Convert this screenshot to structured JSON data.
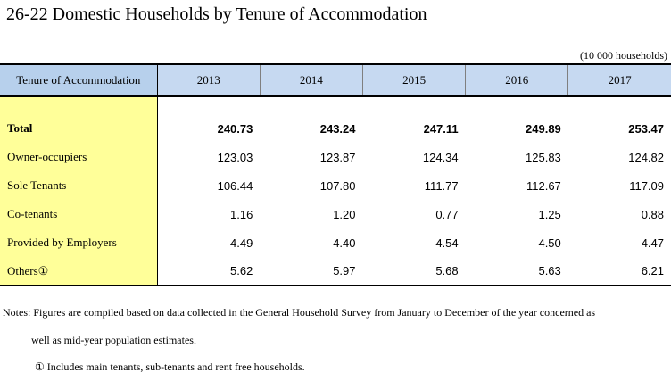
{
  "title": "26-22  Domestic Households by Tenure of Accommodation",
  "unit": "(10 000 households)",
  "table": {
    "header_label": "Tenure of Accommodation",
    "years": [
      "2013",
      "2014",
      "2015",
      "2016",
      "2017"
    ],
    "rows": [
      {
        "label": "Total",
        "values": [
          "240.73",
          "243.24",
          "247.11",
          "249.89",
          "253.47"
        ]
      },
      {
        "label": "Owner-occupiers",
        "values": [
          "123.03",
          "123.87",
          "124.34",
          "125.83",
          "124.82"
        ]
      },
      {
        "label": "Sole Tenants",
        "values": [
          "106.44",
          "107.80",
          "111.77",
          "112.67",
          "117.09"
        ]
      },
      {
        "label": "Co-tenants",
        "values": [
          "1.16",
          "1.20",
          "0.77",
          "1.25",
          "0.88"
        ]
      },
      {
        "label": "Provided by Employers",
        "values": [
          "4.49",
          "4.40",
          "4.54",
          "4.50",
          "4.47"
        ]
      },
      {
        "label": "Others①",
        "values": [
          "5.62",
          "5.97",
          "5.68",
          "5.63",
          "6.21"
        ]
      }
    ]
  },
  "notes": {
    "line1": "Notes: Figures are compiled based on data collected in the General Household Survey from January to December of the year concerned as",
    "line2": "well as mid-year population estimates.",
    "line3": "① Includes main tenants, sub-tenants and rent free households."
  }
}
